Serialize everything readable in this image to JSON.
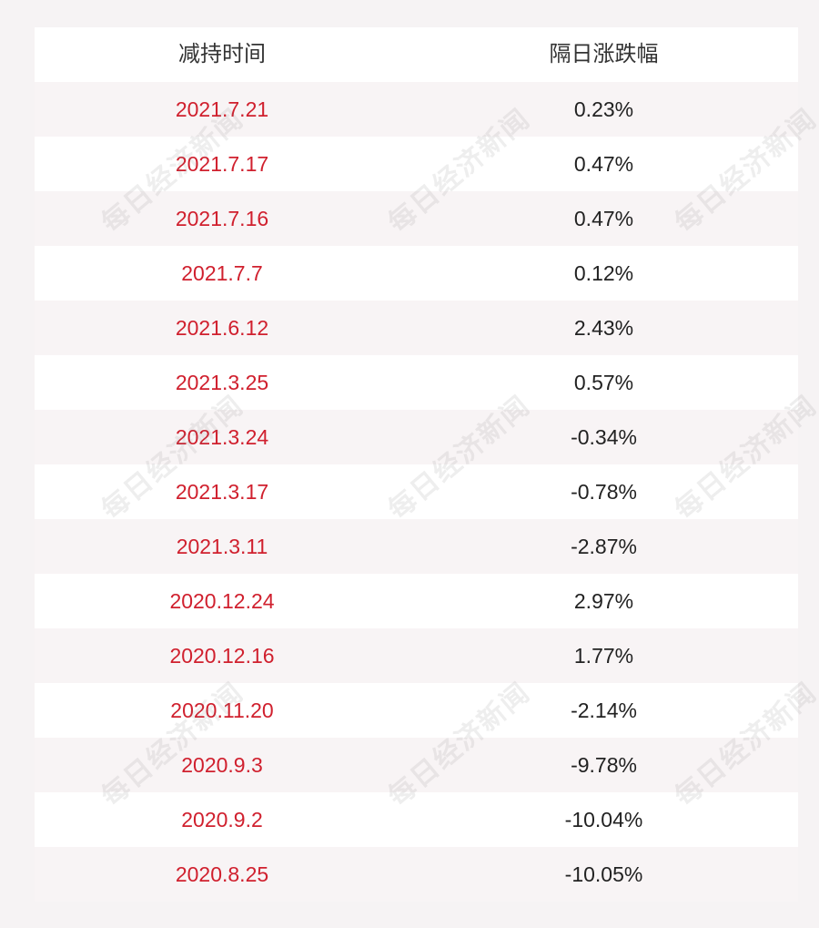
{
  "table": {
    "header": {
      "date_col": "减持时间",
      "change_col": "隔日涨跌幅"
    },
    "rows": [
      {
        "date": "2021.7.21",
        "change": "0.23%"
      },
      {
        "date": "2021.7.17",
        "change": "0.47%"
      },
      {
        "date": "2021.7.16",
        "change": "0.47%"
      },
      {
        "date": "2021.7.7",
        "change": "0.12%"
      },
      {
        "date": "2021.6.12",
        "change": "2.43%"
      },
      {
        "date": "2021.3.25",
        "change": "0.57%"
      },
      {
        "date": "2021.3.24",
        "change": "-0.34%"
      },
      {
        "date": "2021.3.17",
        "change": "-0.78%"
      },
      {
        "date": "2021.3.11",
        "change": "-2.87%"
      },
      {
        "date": "2020.12.24",
        "change": "2.97%"
      },
      {
        "date": "2020.12.16",
        "change": "1.77%"
      },
      {
        "date": "2020.11.20",
        "change": "-2.14%"
      },
      {
        "date": "2020.9.3",
        "change": "-9.78%"
      },
      {
        "date": "2020.9.2",
        "change": "-10.04%"
      },
      {
        "date": "2020.8.25",
        "change": "-10.05%"
      }
    ]
  },
  "watermark": {
    "text": "每日经济新闻"
  },
  "colors": {
    "date_text": "#d0202e",
    "value_text": "#222222",
    "header_text": "#333333",
    "row_white": "#ffffff",
    "row_tint": "#f8f4f5",
    "background": "#f6f3f4"
  }
}
